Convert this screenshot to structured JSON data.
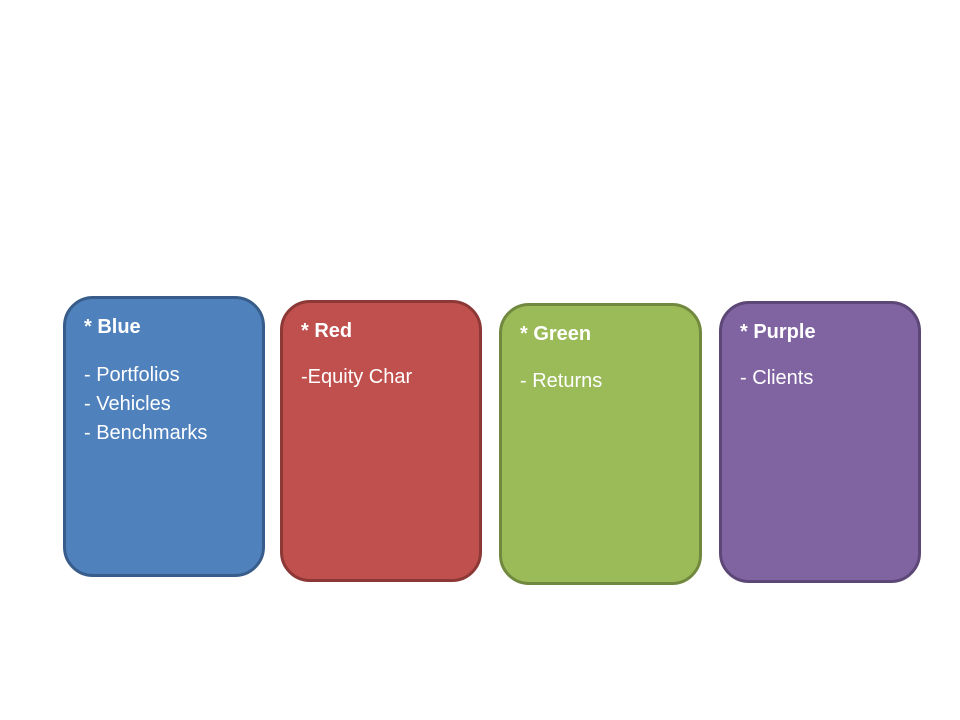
{
  "cards": [
    {
      "title": "* Blue",
      "items": [
        "- Portfolios",
        "- Vehicles",
        "- Benchmarks"
      ],
      "fill": "#4F81BD",
      "border": "#385D8A"
    },
    {
      "title": "* Red",
      "items": [
        "-Equity Char"
      ],
      "fill": "#C0504D",
      "border": "#8C3836"
    },
    {
      "title": "* Green",
      "items": [
        "- Returns"
      ],
      "fill": "#9BBB59",
      "border": "#71893F"
    },
    {
      "title": "* Purple",
      "items": [
        "- Clients"
      ],
      "fill": "#8064A2",
      "border": "#5C4776"
    }
  ]
}
